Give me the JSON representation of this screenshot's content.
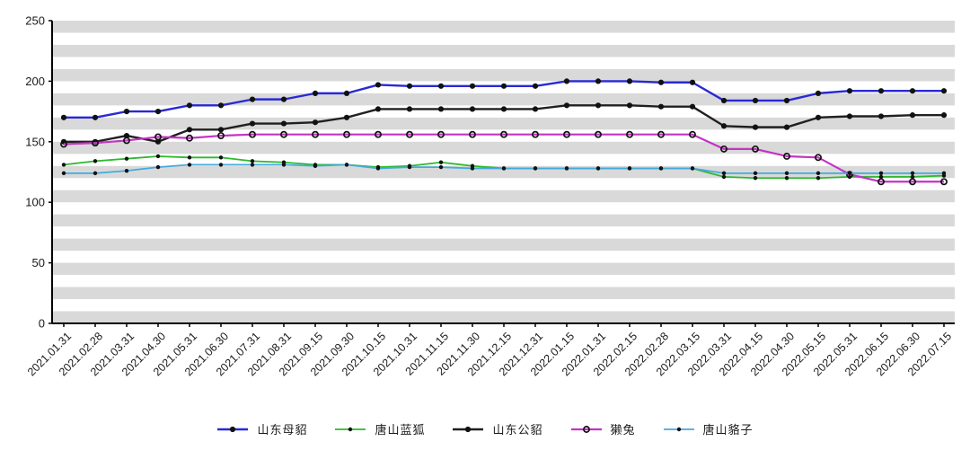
{
  "chart_data": {
    "type": "line",
    "title": "",
    "xlabel": "",
    "ylabel": "",
    "ylim": [
      0,
      250
    ],
    "yticks": [
      0,
      50,
      100,
      150,
      200,
      250
    ],
    "grid": {
      "style": "alternating-horizontal-bands",
      "band_step": 10,
      "band_color": "#d9d9d9",
      "plot_background": "#ffffff"
    },
    "axis_color": "#000000",
    "tick_label_color": "#1a1a1a",
    "marker_color": "#111111",
    "legend_position": "bottom-center",
    "categories": [
      "2021.01.31",
      "2021.02.28",
      "2021.03.31",
      "2021.04.30",
      "2021.05.31",
      "2021.06.30",
      "2021.07.31",
      "2021.08.31",
      "2021.09.15",
      "2021.09.30",
      "2021.10.15",
      "2021.10.31",
      "2021.11.15",
      "2021.11.30",
      "2021.12.15",
      "2021.12.31",
      "2022.01.15",
      "2022.01.31",
      "2022.02.15",
      "2022.02.28",
      "2022.03.15",
      "2022.03.31",
      "2022.04.15",
      "2022.04.30",
      "2022.05.15",
      "2022.05.31",
      "2022.06.15",
      "2022.06.30",
      "2022.07.15"
    ],
    "series": [
      {
        "name": "山东母貂",
        "color": "#2929d4",
        "line_width": 2.4,
        "marker": "filled-dot",
        "marker_radius": 3.1,
        "values": [
          170,
          170,
          175,
          175,
          180,
          180,
          185,
          185,
          190,
          190,
          197,
          196,
          196,
          196,
          196,
          196,
          200,
          200,
          200,
          199,
          199,
          184,
          184,
          184,
          190,
          192,
          192,
          192,
          192
        ]
      },
      {
        "name": "唐山蓝狐",
        "color": "#2db92d",
        "line_width": 1.8,
        "marker": "filled-dot",
        "marker_radius": 2.2,
        "values": [
          131,
          134,
          136,
          138,
          137,
          137,
          134,
          133,
          131,
          131,
          129,
          130,
          133,
          130,
          128,
          128,
          128,
          128,
          128,
          128,
          128,
          121,
          120,
          120,
          120,
          121,
          121,
          121,
          122
        ]
      },
      {
        "name": "山东公貂",
        "color": "#202020",
        "line_width": 2.4,
        "marker": "filled-dot",
        "marker_radius": 3.1,
        "values": [
          150,
          150,
          155,
          150,
          160,
          160,
          165,
          165,
          166,
          170,
          177,
          177,
          177,
          177,
          177,
          177,
          180,
          180,
          180,
          179,
          179,
          163,
          162,
          162,
          170,
          171,
          171,
          172,
          172
        ]
      },
      {
        "name": "獭兔",
        "color": "#c433c4",
        "line_width": 2.2,
        "marker": "ring-dot",
        "marker_radius": 3.1,
        "values": [
          148,
          149,
          151,
          154,
          153,
          155,
          156,
          156,
          156,
          156,
          156,
          156,
          156,
          156,
          156,
          156,
          156,
          156,
          156,
          156,
          156,
          144,
          144,
          138,
          137,
          123,
          117,
          117,
          117
        ]
      },
      {
        "name": "唐山貉子",
        "color": "#44aadd",
        "line_width": 1.8,
        "marker": "filled-dot",
        "marker_radius": 2.2,
        "values": [
          124,
          124,
          126,
          129,
          131,
          131,
          131,
          131,
          130,
          131,
          128,
          129,
          129,
          128,
          128,
          128,
          128,
          128,
          128,
          128,
          128,
          124,
          124,
          124,
          124,
          124,
          124,
          124,
          124
        ]
      }
    ]
  }
}
